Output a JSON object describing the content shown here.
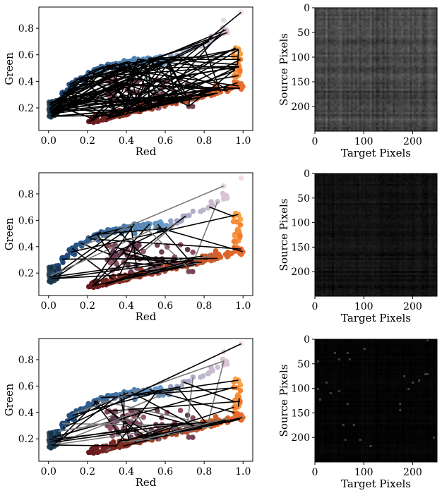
{
  "chart_data": [
    {
      "type": "scatter",
      "xlabel": "Red",
      "ylabel": "Green",
      "xlim": [
        -0.05,
        1.05
      ],
      "ylim": [
        0.03,
        0.96
      ],
      "xticks": [
        "0.0",
        "0.2",
        "0.4",
        "0.6",
        "0.8",
        "1.0"
      ],
      "yticks": [
        "0.2",
        "0.4",
        "0.6",
        "0.8"
      ],
      "grid": false,
      "point_colormap": "blue to red/orange by color",
      "line_color": "#000000",
      "match_line_density": "very dense",
      "match_line_count": 150
    },
    {
      "type": "heatmap",
      "xlabel": "Target Pixels",
      "ylabel": "Source Pixels",
      "xticks": [
        "0",
        "100",
        "200"
      ],
      "yticks": [
        "0",
        "50",
        "100",
        "150",
        "200"
      ],
      "extent": [
        0,
        250
      ],
      "brightness": "mid gray"
    },
    {
      "type": "scatter",
      "xlabel": "Red",
      "ylabel": "Green",
      "xlim": [
        -0.05,
        1.05
      ],
      "ylim": [
        0.03,
        0.96
      ],
      "xticks": [
        "0.0",
        "0.2",
        "0.4",
        "0.6",
        "0.8",
        "1.0"
      ],
      "yticks": [
        "0.2",
        "0.4",
        "0.6",
        "0.8"
      ],
      "grid": false,
      "point_colormap": "blue to red/orange by color",
      "line_color": "#000000",
      "match_line_density": "sparse",
      "match_line_count": 45
    },
    {
      "type": "heatmap",
      "xlabel": "Target Pixels",
      "ylabel": "Source Pixels",
      "xticks": [
        "0",
        "100",
        "200"
      ],
      "yticks": [
        "0",
        "50",
        "100",
        "150",
        "200"
      ],
      "extent": [
        0,
        250
      ],
      "brightness": "near black"
    },
    {
      "type": "scatter",
      "xlabel": "Red",
      "ylabel": "Green",
      "xlim": [
        -0.05,
        1.05
      ],
      "ylim": [
        0.03,
        0.96
      ],
      "xticks": [
        "0.0",
        "0.2",
        "0.4",
        "0.6",
        "0.8",
        "1.0"
      ],
      "yticks": [
        "0.2",
        "0.4",
        "0.6",
        "0.8"
      ],
      "grid": false,
      "point_colormap": "blue to red/orange by color",
      "line_color": "#000000",
      "match_line_density": "moderate",
      "match_line_count": 60
    },
    {
      "type": "heatmap",
      "xlabel": "Target Pixels",
      "ylabel": "Source Pixels",
      "xticks": [
        "0",
        "100",
        "200"
      ],
      "yticks": [
        "0",
        "50",
        "100",
        "150",
        "200"
      ],
      "extent": [
        0,
        250
      ],
      "brightness": "black"
    }
  ]
}
